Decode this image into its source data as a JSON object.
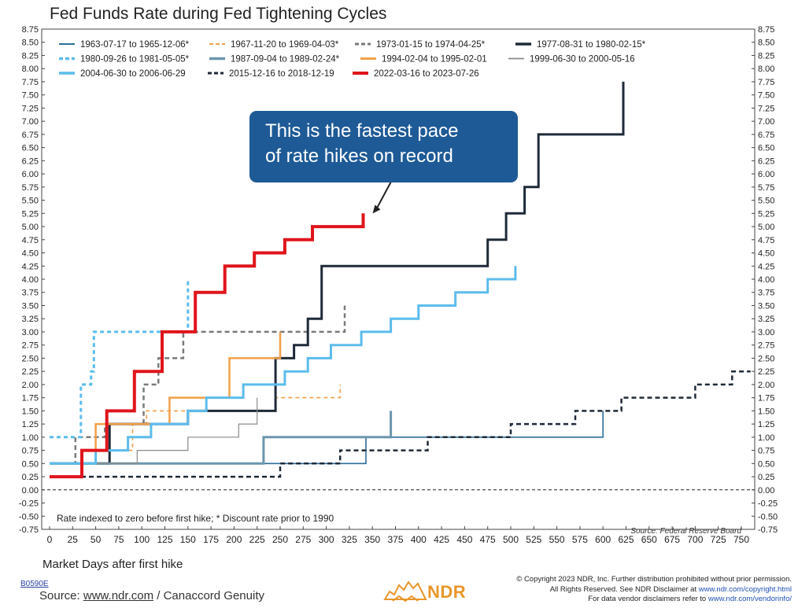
{
  "header": {
    "title": "Fed Funds Rate during Fed Tightening Cycles"
  },
  "callout": {
    "line1": "This is the fastest pace",
    "line2": "of rate hikes on record"
  },
  "notes": {
    "footnote": "Rate indexed to zero before first hike; * Discount rate prior to 1990",
    "source_in_chart": "Source: Federal Reserve Board"
  },
  "footer": {
    "code": "B0590E",
    "source_prefix": "Source: ",
    "source_link": "www.ndr.com",
    "source_suffix": " / Canaccord Genuity",
    "copyright_1": "© Copyright 2023 NDR, Inc. Further distribution prohibited without prior permission.",
    "copyright_2a": "All Rights Reserved. See NDR Disclaimer at ",
    "copyright_2b": "www.ndr.com/copyright.html",
    "copyright_3a": "For data vendor disclaimers refer to ",
    "copyright_3b": "www.ndr.com/vendorinfo/",
    "logo_text": "NDR"
  },
  "chart_data": {
    "type": "line",
    "title": "Fed Funds Rate during Fed Tightening Cycles",
    "xlabel": "Market Days after first hike",
    "ylabel": "",
    "xlim": [
      0,
      760
    ],
    "ylim": [
      -0.75,
      8.75
    ],
    "x_ticks": [
      0,
      25,
      50,
      75,
      100,
      125,
      150,
      175,
      200,
      225,
      250,
      275,
      300,
      325,
      350,
      375,
      400,
      425,
      450,
      475,
      500,
      525,
      550,
      575,
      600,
      625,
      650,
      675,
      700,
      725,
      750
    ],
    "y_ticks": [
      "8.75",
      "8.50",
      "8.25",
      "8.00",
      "7.75",
      "7.50",
      "7.25",
      "7.00",
      "6.75",
      "6.50",
      "6.25",
      "6.00",
      "5.75",
      "5.50",
      "5.25",
      "5.00",
      "4.75",
      "4.50",
      "4.25",
      "4.00",
      "3.75",
      "3.50",
      "3.25",
      "3.00",
      "2.75",
      "2.50",
      "2.25",
      "2.00",
      "1.75",
      "1.50",
      "1.25",
      "1.00",
      "0.75",
      "0.50",
      "0.25",
      "0.00",
      "-0.25",
      "-0.50",
      "-0.75"
    ],
    "grid": false,
    "legend_position": "top",
    "series": [
      {
        "name": "1963-07-17 to 1965-12-06*",
        "color": "#2e6e9c",
        "dash": "solid",
        "width": 1.6,
        "points": [
          [
            0,
            0.5
          ],
          [
            343,
            0.5
          ],
          [
            343,
            1.0
          ],
          [
            600,
            1.0
          ],
          [
            600,
            1.5
          ]
        ]
      },
      {
        "name": "1967-11-20 to 1969-04-03*",
        "color": "#f2a04a",
        "dash": "5,4",
        "width": 1.6,
        "points": [
          [
            0,
            0.5
          ],
          [
            35,
            0.5
          ],
          [
            35,
            0.75
          ],
          [
            90,
            0.75
          ],
          [
            90,
            1.25
          ],
          [
            105,
            1.25
          ],
          [
            105,
            1.5
          ],
          [
            245,
            1.5
          ],
          [
            245,
            1.75
          ],
          [
            315,
            1.75
          ],
          [
            315,
            2.0
          ]
        ]
      },
      {
        "name": "1973-01-15 to 1974-04-25*",
        "color": "#7a7a7a",
        "dash": "6,4",
        "width": 2.5,
        "points": [
          [
            0,
            0.5
          ],
          [
            28,
            0.5
          ],
          [
            28,
            1.0
          ],
          [
            60,
            1.0
          ],
          [
            60,
            1.25
          ],
          [
            102,
            1.25
          ],
          [
            102,
            2.0
          ],
          [
            118,
            2.0
          ],
          [
            118,
            2.5
          ],
          [
            145,
            2.5
          ],
          [
            145,
            3.0
          ],
          [
            320,
            3.0
          ],
          [
            320,
            3.5
          ]
        ]
      },
      {
        "name": "1977-08-31 to 1980-02-15*",
        "color": "#1e2a38",
        "dash": "solid",
        "width": 3,
        "points": [
          [
            0,
            0.5
          ],
          [
            65,
            0.5
          ],
          [
            65,
            1.25
          ],
          [
            150,
            1.25
          ],
          [
            150,
            1.5
          ],
          [
            245,
            1.5
          ],
          [
            245,
            2.5
          ],
          [
            265,
            2.5
          ],
          [
            265,
            2.75
          ],
          [
            280,
            2.75
          ],
          [
            280,
            3.25
          ],
          [
            295,
            3.25
          ],
          [
            295,
            4.25
          ],
          [
            475,
            4.25
          ],
          [
            475,
            4.75
          ],
          [
            495,
            4.75
          ],
          [
            495,
            5.25
          ],
          [
            515,
            5.25
          ],
          [
            515,
            5.75
          ],
          [
            530,
            5.75
          ],
          [
            530,
            6.75
          ],
          [
            622,
            6.75
          ],
          [
            622,
            7.75
          ]
        ]
      },
      {
        "name": "1980-09-26 to 1981-05-05*",
        "color": "#5cbcec",
        "dash": "5,4",
        "width": 3,
        "points": [
          [
            0,
            1.0
          ],
          [
            34,
            1.0
          ],
          [
            34,
            2.0
          ],
          [
            45,
            2.0
          ],
          [
            45,
            2.25
          ],
          [
            48,
            2.25
          ],
          [
            48,
            3.0
          ],
          [
            150,
            3.0
          ],
          [
            150,
            4.0
          ]
        ]
      },
      {
        "name": "1987-09-04 to 1989-02-24*",
        "color": "#6b96ad",
        "dash": "solid",
        "width": 3,
        "points": [
          [
            0,
            0.5
          ],
          [
            232,
            0.5
          ],
          [
            232,
            1.0
          ],
          [
            370,
            1.0
          ],
          [
            370,
            1.5
          ]
        ]
      },
      {
        "name": "1994-02-04 to 1995-02-01",
        "color": "#f2a04a",
        "dash": "solid",
        "width": 2.5,
        "points": [
          [
            0,
            0.5
          ],
          [
            50,
            0.5
          ],
          [
            50,
            1.25
          ],
          [
            130,
            1.25
          ],
          [
            130,
            1.75
          ],
          [
            195,
            1.75
          ],
          [
            195,
            2.5
          ],
          [
            250,
            2.5
          ],
          [
            250,
            3.0
          ]
        ]
      },
      {
        "name": "1999-06-30 to 2000-05-16",
        "color": "#8a8a8a",
        "dash": "solid",
        "width": 1.2,
        "points": [
          [
            0,
            0.5
          ],
          [
            95,
            0.5
          ],
          [
            95,
            0.75
          ],
          [
            150,
            0.75
          ],
          [
            150,
            1.0
          ],
          [
            205,
            1.0
          ],
          [
            205,
            1.25
          ],
          [
            225,
            1.25
          ],
          [
            225,
            1.75
          ]
        ]
      },
      {
        "name": "2004-06-30 to 2006-06-29",
        "color": "#5cbcec",
        "dash": "solid",
        "width": 3,
        "points": [
          [
            0,
            0.5
          ],
          [
            50,
            0.5
          ],
          [
            50,
            0.75
          ],
          [
            85,
            0.75
          ],
          [
            85,
            1.0
          ],
          [
            110,
            1.0
          ],
          [
            110,
            1.25
          ],
          [
            150,
            1.25
          ],
          [
            150,
            1.5
          ],
          [
            170,
            1.5
          ],
          [
            170,
            1.75
          ],
          [
            210,
            1.75
          ],
          [
            210,
            2.0
          ],
          [
            255,
            2.0
          ],
          [
            255,
            2.25
          ],
          [
            280,
            2.25
          ],
          [
            280,
            2.5
          ],
          [
            305,
            2.5
          ],
          [
            305,
            2.75
          ],
          [
            338,
            2.75
          ],
          [
            338,
            3.0
          ],
          [
            370,
            3.0
          ],
          [
            370,
            3.25
          ],
          [
            400,
            3.25
          ],
          [
            400,
            3.5
          ],
          [
            440,
            3.5
          ],
          [
            440,
            3.75
          ],
          [
            475,
            3.75
          ],
          [
            475,
            4.0
          ],
          [
            505,
            4.0
          ],
          [
            505,
            4.25
          ]
        ]
      },
      {
        "name": "2015-12-16 to 2018-12-19",
        "color": "#1e2a38",
        "dash": "6,4",
        "width": 2.5,
        "points": [
          [
            0,
            0.25
          ],
          [
            250,
            0.25
          ],
          [
            250,
            0.5
          ],
          [
            315,
            0.5
          ],
          [
            315,
            0.75
          ],
          [
            410,
            0.75
          ],
          [
            410,
            1.0
          ],
          [
            500,
            1.0
          ],
          [
            500,
            1.25
          ],
          [
            570,
            1.25
          ],
          [
            570,
            1.5
          ],
          [
            620,
            1.5
          ],
          [
            620,
            1.75
          ],
          [
            700,
            1.75
          ],
          [
            700,
            2.0
          ],
          [
            740,
            2.0
          ],
          [
            740,
            2.25
          ],
          [
            760,
            2.25
          ]
        ]
      },
      {
        "name": "2022-03-16 to 2023-07-26",
        "color": "#e0141b",
        "dash": "solid",
        "width": 4,
        "points": [
          [
            0,
            0.25
          ],
          [
            35,
            0.25
          ],
          [
            35,
            0.75
          ],
          [
            62,
            0.75
          ],
          [
            62,
            1.5
          ],
          [
            92,
            1.5
          ],
          [
            92,
            2.25
          ],
          [
            122,
            2.25
          ],
          [
            122,
            3.0
          ],
          [
            158,
            3.0
          ],
          [
            158,
            3.75
          ],
          [
            190,
            3.75
          ],
          [
            190,
            4.25
          ],
          [
            222,
            4.25
          ],
          [
            222,
            4.5
          ],
          [
            255,
            4.5
          ],
          [
            255,
            4.75
          ],
          [
            285,
            4.75
          ],
          [
            285,
            5.0
          ],
          [
            340,
            5.0
          ],
          [
            340,
            5.25
          ]
        ]
      }
    ]
  }
}
